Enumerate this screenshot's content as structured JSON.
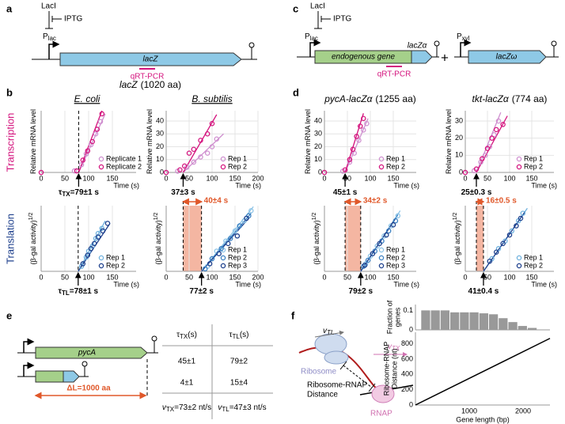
{
  "panels": {
    "a": {
      "label": "a",
      "repressor": "LacI",
      "inducer": "IPTG",
      "promoter": "P",
      "promoter_sub": "lac",
      "gene": "lacZ",
      "assay": "qRT-PCR"
    },
    "b": {
      "label": "b",
      "title_gene": "lacZ",
      "title_rest": "(1020 aa)",
      "organisms": [
        "E. coli",
        "B. subtilis"
      ]
    },
    "c": {
      "label": "c",
      "repressor": "LacI",
      "inducer": "IPTG",
      "promoter": "P",
      "promoter_sub": "lac",
      "gene": "endogenous gene",
      "tag": "lacZα",
      "plus": "+",
      "promoter2": "P",
      "promoter2_sub": "xyl",
      "gene2": "lacZω",
      "assay": "qRT-PCR"
    },
    "d": {
      "label": "d",
      "titles": [
        {
          "gene": "pycA-lacZα",
          "rest": "(1255 aa)"
        },
        {
          "gene": "tkt-lacZα",
          "rest": "(774 aa)"
        }
      ]
    },
    "rows": [
      "Transcription",
      "Translation"
    ],
    "e": {
      "label": "e",
      "gene": "pycA",
      "delta": "ΔL=1000 aa",
      "table": {
        "header": [
          {
            "symbol": "τ",
            "sub": "TX",
            "unit": "(s)"
          },
          {
            "symbol": "τ",
            "sub": "TL",
            "unit": "(s)"
          }
        ],
        "rows": [
          [
            "45±1",
            "79±2"
          ],
          [
            "4±1",
            "15±4"
          ]
        ],
        "footer": [
          {
            "symbol": "v",
            "sub": "TX",
            "text": "=73±2 nt/s"
          },
          {
            "symbol": "v",
            "sub": "TL",
            "text": "=47±3 nt/s"
          }
        ]
      }
    },
    "f": {
      "label": "f",
      "velocity_tl": {
        "symbol": "v",
        "sub": "TL"
      },
      "velocity_tx": {
        "symbol": "v",
        "sub": "TX"
      },
      "ribosome": "Ribosome",
      "rnap": "RNAP",
      "distance": [
        "Ribosome-RNAP",
        "Distance"
      ]
    }
  },
  "chart_data": [
    {
      "type": "scatter",
      "xlim": [
        0,
        200
      ],
      "xticks": [
        0,
        50,
        100,
        150
      ],
      "ylim": [
        0,
        40
      ],
      "grid": true,
      "xlabel": "Time (s)",
      "ylabel": "Relative mRNA level",
      "series": [
        {
          "name": "Replicate 1",
          "color": "#cf8fcf",
          "x": [
            0,
            70,
            85,
            95,
            105,
            115,
            125
          ],
          "values": [
            0,
            1,
            5,
            12,
            18,
            25,
            33
          ]
        },
        {
          "name": "Replicate 2",
          "color": "#d4147e",
          "x": [
            0,
            75,
            88,
            98,
            108,
            118,
            128
          ],
          "values": [
            0,
            1,
            8,
            14,
            20,
            28,
            38
          ]
        }
      ],
      "fits": [
        {
          "color": "#cf8fcf",
          "x": [
            79,
            135
          ],
          "values": [
            0,
            38
          ]
        },
        {
          "color": "#d4147e",
          "x": [
            79,
            128
          ],
          "values": [
            0,
            40
          ]
        }
      ],
      "marker": {
        "value": 79,
        "symbol": "τ",
        "symbol_sub": "TX",
        "label": "=79±1 s",
        "dashed": true
      }
    },
    {
      "type": "scatter",
      "xlim": [
        0,
        200
      ],
      "xticks": [
        0,
        50,
        100,
        150,
        200
      ],
      "ylim": [
        0,
        48
      ],
      "yticks": [
        0,
        10,
        20,
        30,
        40
      ],
      "grid": true,
      "xlabel": "Time (s)",
      "ylabel": "Relative mRNA level",
      "series": [
        {
          "name": "Rep 1",
          "color": "#cf8fcf",
          "x": [
            0,
            25,
            45,
            60,
            75,
            90,
            100,
            110
          ],
          "values": [
            0,
            1,
            4,
            8,
            12,
            15,
            20,
            26
          ]
        },
        {
          "name": "Rep 2",
          "color": "#d4147e",
          "x": [
            0,
            30,
            40,
            50,
            60,
            75,
            90,
            100
          ],
          "values": [
            0,
            2,
            5,
            15,
            18,
            25,
            30,
            38
          ]
        }
      ],
      "fits": [
        {
          "color": "#cf8fcf",
          "x": [
            37,
            125
          ],
          "values": [
            0,
            30
          ]
        },
        {
          "color": "#d4147e",
          "x": [
            37,
            110
          ],
          "values": [
            0,
            45
          ]
        }
      ],
      "marker": {
        "value": 37,
        "label": "37±3 s"
      }
    },
    {
      "type": "scatter",
      "xlim": [
        0,
        200
      ],
      "xticks": [
        0,
        50,
        100,
        150
      ],
      "ylim": [
        0,
        48
      ],
      "yticks": [
        0,
        10,
        20,
        30,
        40
      ],
      "grid": true,
      "xlabel": "Time (s)",
      "ylabel": "Relative mRNA level",
      "series": [
        {
          "name": "Rep 1",
          "color": "#cf8fcf",
          "x": [
            0,
            40,
            55,
            65,
            75,
            85,
            92
          ],
          "values": [
            0,
            1,
            8,
            15,
            25,
            33,
            38
          ]
        },
        {
          "name": "Rep 2",
          "color": "#d4147e",
          "x": [
            0,
            45,
            55,
            62,
            70,
            78,
            85
          ],
          "values": [
            0,
            2,
            10,
            18,
            28,
            36,
            42
          ]
        }
      ],
      "fits": [
        {
          "color": "#cf8fcf",
          "x": [
            45,
            95
          ],
          "values": [
            0,
            42
          ]
        },
        {
          "color": "#d4147e",
          "x": [
            45,
            85
          ],
          "values": [
            0,
            46
          ]
        }
      ],
      "marker": {
        "value": 45,
        "label": "45±1 s"
      }
    },
    {
      "type": "scatter",
      "xlim": [
        0,
        200
      ],
      "xticks": [
        0,
        50,
        100,
        150
      ],
      "ylim": [
        0,
        36
      ],
      "yticks": [
        0,
        10,
        20,
        30
      ],
      "grid": true,
      "xlabel": "Time (s)",
      "ylabel": "Relative mRNA level",
      "series": [
        {
          "name": "Rep 1",
          "color": "#cf8fcf",
          "x": [
            0,
            20,
            35,
            45,
            55,
            65,
            75
          ],
          "values": [
            0,
            1,
            6,
            10,
            15,
            22,
            30
          ]
        },
        {
          "name": "Rep 2",
          "color": "#d4147e",
          "x": [
            0,
            25,
            38,
            50,
            60,
            70,
            85
          ],
          "values": [
            0,
            2,
            8,
            14,
            20,
            25,
            28
          ]
        }
      ],
      "fits": [
        {
          "color": "#cf8fcf",
          "x": [
            25,
            80
          ],
          "values": [
            0,
            35
          ]
        },
        {
          "color": "#d4147e",
          "x": [
            25,
            95
          ],
          "values": [
            0,
            33
          ]
        }
      ],
      "marker": {
        "value": 25,
        "label": "25±0.3 s"
      }
    },
    {
      "type": "scatter",
      "xlim": [
        0,
        200
      ],
      "xticks": [
        0,
        50,
        100,
        150
      ],
      "ylim": [
        0,
        130
      ],
      "grid": true,
      "xlabel": "Time (s)",
      "ylabel": "(β-gal activity)",
      "ylabel_sup": "1/2",
      "series": [
        {
          "name": "Rep 1",
          "color": "#6fb1de",
          "x": [
            85,
            95,
            100,
            108,
            115,
            120,
            128
          ],
          "values": [
            10,
            28,
            40,
            50,
            65,
            75,
            85
          ]
        },
        {
          "name": "Rep 2",
          "color": "#1d3f8c",
          "x": [
            88,
            98,
            105,
            112,
            120,
            130,
            140
          ],
          "values": [
            15,
            32,
            45,
            55,
            68,
            80,
            95
          ]
        }
      ],
      "fits": [
        {
          "color": "#6fb1de",
          "x": [
            78,
            135
          ],
          "values": [
            0,
            100
          ]
        },
        {
          "color": "#1d3f8c",
          "x": [
            78,
            145
          ],
          "values": [
            0,
            95
          ]
        }
      ],
      "marker": {
        "value": 78,
        "symbol": "τ",
        "symbol_sub": "TL",
        "label": "=78±1 s",
        "dashed": true
      }
    },
    {
      "type": "scatter",
      "xlim": [
        0,
        200
      ],
      "xticks": [
        0,
        50,
        100,
        150,
        200
      ],
      "ylim": [
        0,
        130
      ],
      "grid": true,
      "xlabel": "Time (s)",
      "ylabel": "(β-gal activity)",
      "ylabel_sup": "1/2",
      "series": [
        {
          "name": "Rep 1",
          "color": "#8cc3e6",
          "x": [
            90,
            110,
            130,
            150,
            170,
            185
          ],
          "values": [
            10,
            40,
            60,
            80,
            100,
            120
          ]
        },
        {
          "name": "Rep 2",
          "color": "#3a80c2",
          "x": [
            85,
            100,
            120,
            140,
            160,
            180
          ],
          "values": [
            5,
            25,
            45,
            65,
            90,
            110
          ]
        },
        {
          "name": "Rep 3",
          "color": "#1d3f8c",
          "x": [
            95,
            115,
            135,
            155,
            175
          ],
          "values": [
            15,
            35,
            55,
            70,
            105
          ]
        }
      ],
      "fits": [
        {
          "color": "#8cc3e6",
          "x": [
            77,
            190
          ],
          "values": [
            0,
            128
          ]
        },
        {
          "color": "#3a80c2",
          "x": [
            77,
            185
          ],
          "values": [
            0,
            115
          ]
        },
        {
          "color": "#1d3f8c",
          "x": [
            77,
            180
          ],
          "values": [
            0,
            105
          ]
        }
      ],
      "shade": {
        "from": 37,
        "to": 77,
        "label": "40±4 s"
      },
      "marker": {
        "value": 77,
        "label": "77±2 s",
        "dashed": true
      }
    },
    {
      "type": "scatter",
      "xlim": [
        0,
        200
      ],
      "xticks": [
        0,
        50,
        100,
        150
      ],
      "ylim": [
        0,
        130
      ],
      "grid": true,
      "xlabel": "Time (s)",
      "ylabel": "(β-gal activity)",
      "ylabel_sup": "1/2",
      "series": [
        {
          "name": "Rep 1",
          "color": "#8cc3e6",
          "x": [
            90,
            100,
            115,
            130,
            145,
            160
          ],
          "values": [
            15,
            30,
            50,
            70,
            90,
            110
          ]
        },
        {
          "name": "Rep 2",
          "color": "#3a80c2",
          "x": [
            85,
            95,
            110,
            125,
            140,
            155
          ],
          "values": [
            10,
            22,
            40,
            60,
            80,
            100
          ]
        },
        {
          "name": "Rep 3",
          "color": "#1d3f8c",
          "x": [
            88,
            105,
            120,
            135,
            150
          ],
          "values": [
            12,
            35,
            55,
            72,
            92
          ]
        }
      ],
      "fits": [
        {
          "color": "#8cc3e6",
          "x": [
            79,
            165
          ],
          "values": [
            0,
            120
          ]
        },
        {
          "color": "#3a80c2",
          "x": [
            79,
            160
          ],
          "values": [
            0,
            112
          ]
        },
        {
          "color": "#1d3f8c",
          "x": [
            79,
            155
          ],
          "values": [
            0,
            105
          ]
        }
      ],
      "shade": {
        "from": 45,
        "to": 79,
        "label": "34±2 s"
      },
      "marker": {
        "value": 79,
        "label": "79±2 s",
        "dashed": true
      }
    },
    {
      "type": "scatter",
      "xlim": [
        0,
        200
      ],
      "xticks": [
        0,
        50,
        100,
        150
      ],
      "ylim": [
        0,
        130
      ],
      "grid": true,
      "xlabel": "Time (s)",
      "ylabel": "(β-gal activity)",
      "ylabel_sup": "1/2",
      "series": [
        {
          "name": "Rep 1",
          "color": "#6fb1de",
          "x": [
            60,
            75,
            90,
            105,
            120,
            130
          ],
          "values": [
            25,
            45,
            60,
            80,
            100,
            115
          ]
        },
        {
          "name": "Rep 2",
          "color": "#1d3f8c",
          "x": [
            55,
            70,
            85,
            100,
            115,
            125
          ],
          "values": [
            20,
            38,
            55,
            72,
            90,
            105
          ]
        }
      ],
      "fits": [
        {
          "color": "#6fb1de",
          "x": [
            41,
            140
          ],
          "values": [
            0,
            125
          ]
        },
        {
          "color": "#1d3f8c",
          "x": [
            41,
            135
          ],
          "values": [
            0,
            118
          ]
        }
      ],
      "shade": {
        "from": 25,
        "to": 41,
        "label": "16±0.5 s"
      },
      "marker": {
        "value": 41,
        "label": "41±0.4 s",
        "dashed": true
      }
    },
    {
      "type": "histogram",
      "bins": [
        100,
        280,
        460,
        640,
        820,
        1000,
        1180,
        1360,
        1540,
        1720,
        1900,
        2080,
        2260
      ],
      "values": [
        0.1,
        0.1,
        0.1,
        0.09,
        0.09,
        0.09,
        0.085,
        0.08,
        0.06,
        0.04,
        0.02,
        0.01
      ],
      "color": "#999999",
      "xlim": [
        0,
        2500
      ],
      "ylim": [
        0,
        0.13
      ],
      "yticks": [
        0,
        0.1
      ],
      "ylabel": [
        "Fraction of",
        "genes"
      ]
    },
    {
      "type": "line",
      "x": [
        0,
        2500
      ],
      "values": [
        0,
        870
      ],
      "color": "#000000",
      "xlim": [
        0,
        2500
      ],
      "xticks": [
        1000,
        2000
      ],
      "ylim": [
        0,
        950
      ],
      "yticks": [
        0,
        200,
        400,
        600,
        800
      ],
      "xlabel": "Gene length (bp)",
      "ylabel": [
        "Ribosome-RNAP",
        "Distance (nt)"
      ]
    }
  ]
}
